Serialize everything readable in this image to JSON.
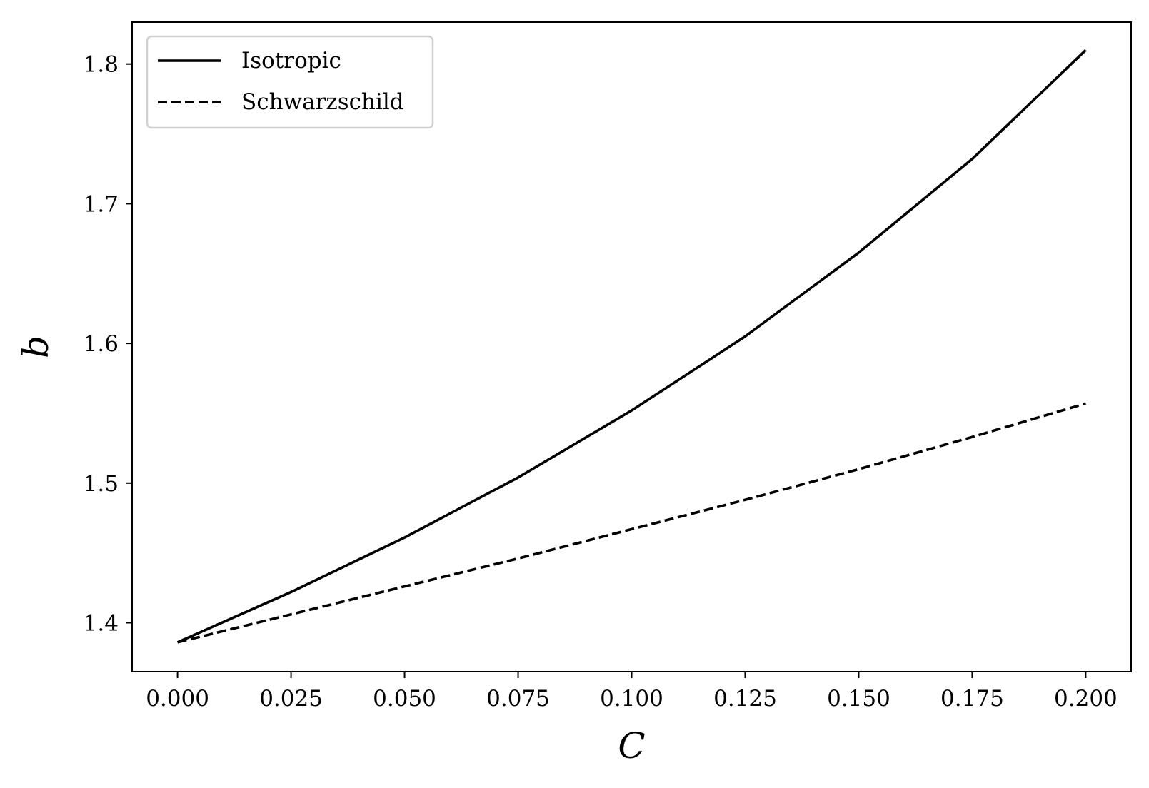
{
  "chart_data": {
    "type": "line",
    "xlabel": "C",
    "ylabel": "b",
    "xlim": [
      -0.01,
      0.21
    ],
    "ylim": [
      1.365,
      1.83
    ],
    "xticks": [
      0.0,
      0.025,
      0.05,
      0.075,
      0.1,
      0.125,
      0.15,
      0.175,
      0.2
    ],
    "xtick_labels": [
      "0.000",
      "0.025",
      "0.050",
      "0.075",
      "0.100",
      "0.125",
      "0.150",
      "0.175",
      "0.200"
    ],
    "yticks": [
      1.4,
      1.5,
      1.6,
      1.7,
      1.8
    ],
    "ytick_labels": [
      "1.4",
      "1.5",
      "1.6",
      "1.7",
      "1.8"
    ],
    "grid": false,
    "legend_position": "top-left",
    "series": [
      {
        "name": "Isotropic",
        "style": "solid",
        "color": "#000000",
        "x": [
          0.0,
          0.025,
          0.05,
          0.075,
          0.1,
          0.125,
          0.15,
          0.175,
          0.2
        ],
        "y": [
          1.386,
          1.422,
          1.461,
          1.504,
          1.552,
          1.605,
          1.665,
          1.732,
          1.81
        ]
      },
      {
        "name": "Schwarzschild",
        "style": "dashed",
        "color": "#000000",
        "x": [
          0.0,
          0.025,
          0.05,
          0.075,
          0.1,
          0.125,
          0.15,
          0.175,
          0.2
        ],
        "y": [
          1.386,
          1.406,
          1.426,
          1.446,
          1.467,
          1.488,
          1.51,
          1.533,
          1.557
        ]
      }
    ]
  }
}
